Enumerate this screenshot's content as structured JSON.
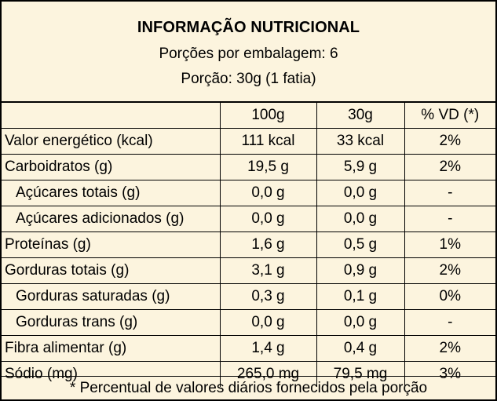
{
  "title": "INFORMAÇÃO NUTRICIONAL",
  "servings_per_package": "Porções por embalagem: 6",
  "serving_size": "Porção: 30g (1 fatia)",
  "columns": [
    "",
    "100g",
    "30g",
    "% VD (*)"
  ],
  "rows": [
    {
      "name": "Valor energético (kcal)",
      "per100": "111 kcal",
      "perServing": "33 kcal",
      "vd": "2%"
    },
    {
      "name": "Carboidratos (g)",
      "per100": "19,5 g",
      "perServing": "5,9 g",
      "vd": "2%"
    },
    {
      "name": "Açúcares totais (g)",
      "per100": "0,0 g",
      "perServing": "0,0 g",
      "vd": "-"
    },
    {
      "name": "Açúcares adicionados (g)",
      "per100": "0,0 g",
      "perServing": "0,0 g",
      "vd": "-"
    },
    {
      "name": "Proteínas (g)",
      "per100": "1,6 g",
      "perServing": "0,5 g",
      "vd": "1%"
    },
    {
      "name": "Gorduras totais (g)",
      "per100": "3,1 g",
      "perServing": "0,9 g",
      "vd": "2%"
    },
    {
      "name": "Gorduras saturadas (g)",
      "per100": "0,3 g",
      "perServing": "0,1 g",
      "vd": "0%"
    },
    {
      "name": "Gorduras trans (g)",
      "per100": "0,0 g",
      "perServing": "0,0 g",
      "vd": "-"
    },
    {
      "name": "Fibra alimentar (g)",
      "per100": "1,4 g",
      "perServing": "0,4 g",
      "vd": "2%"
    },
    {
      "name": "Sódio (mg)",
      "per100": "265,0 mg",
      "perServing": "79,5 mg",
      "vd": "3%"
    }
  ],
  "footnote": "* Percentual de valores diários fornecidos pela porção",
  "colors": {
    "background": "#FCF4DE",
    "border": "#000000"
  }
}
